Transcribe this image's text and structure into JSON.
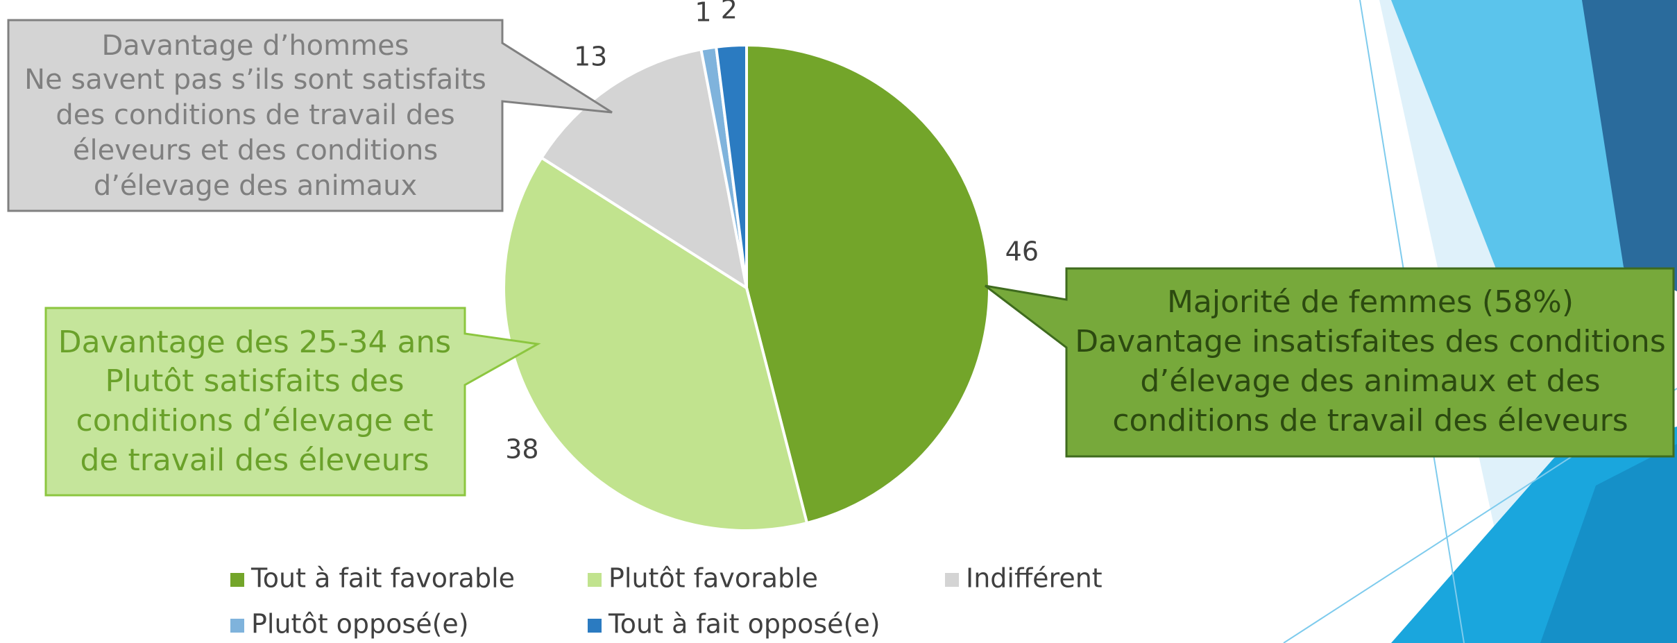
{
  "chart_data": {
    "type": "pie",
    "categories": [
      "Tout à fait favorable",
      "Plutôt favorable",
      "Indifférent",
      "Plutôt opposé(e)",
      "Tout à fait opposé(e)"
    ],
    "values": [
      46,
      38,
      13,
      1,
      2
    ],
    "colors": [
      "#73a52a",
      "#c1e38e",
      "#d4d4d4",
      "#7fb3dc",
      "#2b7bc1"
    ],
    "legend": "bottom",
    "annotations": [
      {
        "lines": [
          "Davantage d’hommes",
          "Ne savent pas s’ils sont satisfaits",
          "des conditions de travail des",
          "éleveurs et des conditions",
          "d’élevage des animaux"
        ]
      },
      {
        "lines": [
          "Davantage des 25-34 ans",
          "Plutôt satisfaits des",
          "conditions d’élevage et",
          "de travail des éleveurs"
        ]
      },
      {
        "lines": [
          "Majorité de femmes (58%)",
          "Davantage insatisfaites des conditions",
          "d’élevage des animaux et des",
          "conditions de travail des éleveurs"
        ]
      }
    ]
  }
}
